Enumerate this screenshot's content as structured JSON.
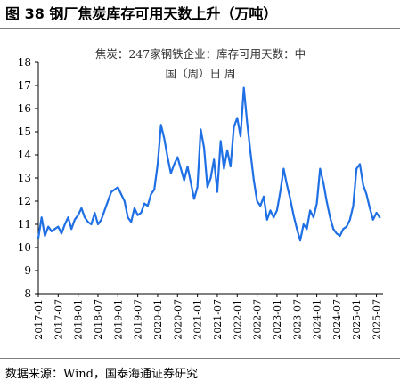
{
  "figure": {
    "title": "图 38  钢厂焦炭库存可用天数上升（万吨）",
    "source": "数据来源：Wind，国泰海通证券研究"
  },
  "chart_data": {
    "type": "line",
    "title_lines": [
      "焦炭：247家钢铁企业：库存可用天数：中",
      "国（周）日  周"
    ],
    "xlabel": "",
    "ylabel": "",
    "ylim": [
      8,
      18
    ],
    "yticks": [
      8,
      9,
      10,
      11,
      12,
      13,
      14,
      15,
      16,
      17,
      18
    ],
    "xlim": [
      "2017-01",
      "2025-09"
    ],
    "xticks": [
      "2017-01",
      "2017-07",
      "2018-01",
      "2018-07",
      "2019-01",
      "2019-07",
      "2020-01",
      "2020-07",
      "2021-01",
      "2021-07",
      "2022-01",
      "2022-07",
      "2023-01",
      "2023-07",
      "2024-01",
      "2024-07",
      "2025-01",
      "2025-07"
    ],
    "grid": false,
    "legend": "none",
    "line_color": "#1f6fe5",
    "series": [
      {
        "x": [
          "2017-01",
          "2017-02",
          "2017-03",
          "2017-04",
          "2017-05",
          "2017-06",
          "2017-07",
          "2017-08",
          "2017-09",
          "2017-10",
          "2017-11",
          "2017-12",
          "2018-01",
          "2018-02",
          "2018-03",
          "2018-04",
          "2018-05",
          "2018-06",
          "2018-07",
          "2018-08",
          "2018-09",
          "2018-10",
          "2018-11",
          "2018-12",
          "2019-01",
          "2019-02",
          "2019-03",
          "2019-04",
          "2019-05",
          "2019-06",
          "2019-07",
          "2019-08",
          "2019-09",
          "2019-10",
          "2019-11",
          "2019-12",
          "2020-01",
          "2020-02",
          "2020-03",
          "2020-04",
          "2020-05",
          "2020-06",
          "2020-07",
          "2020-08",
          "2020-09",
          "2020-10",
          "2020-11",
          "2020-12",
          "2021-01",
          "2021-02",
          "2021-03",
          "2021-04",
          "2021-05",
          "2021-06",
          "2021-07",
          "2021-08",
          "2021-09",
          "2021-10",
          "2021-11",
          "2021-12",
          "2022-01",
          "2022-02",
          "2022-03",
          "2022-04",
          "2022-05",
          "2022-06",
          "2022-07",
          "2022-08",
          "2022-09",
          "2022-10",
          "2022-11",
          "2022-12",
          "2023-01",
          "2023-02",
          "2023-03",
          "2023-04",
          "2023-05",
          "2023-06",
          "2023-07",
          "2023-08",
          "2023-09",
          "2023-10",
          "2023-11",
          "2023-12",
          "2024-01",
          "2024-02",
          "2024-03",
          "2024-04",
          "2024-05",
          "2024-06",
          "2024-07",
          "2024-08",
          "2024-09",
          "2024-10",
          "2024-11",
          "2024-12",
          "2025-01",
          "2025-02",
          "2025-03",
          "2025-04",
          "2025-05",
          "2025-06",
          "2025-07",
          "2025-08"
        ],
        "values": [
          10.4,
          11.3,
          10.5,
          10.9,
          10.7,
          10.8,
          10.9,
          10.6,
          11.0,
          11.3,
          10.8,
          11.2,
          11.4,
          11.7,
          11.3,
          11.1,
          11.0,
          11.5,
          11.0,
          11.2,
          11.6,
          12.0,
          12.4,
          12.5,
          12.6,
          12.3,
          12.0,
          11.3,
          11.1,
          11.7,
          11.4,
          11.5,
          11.9,
          11.8,
          12.3,
          12.5,
          13.6,
          15.3,
          14.7,
          13.9,
          13.2,
          13.6,
          13.9,
          13.4,
          12.9,
          13.5,
          12.8,
          12.1,
          12.6,
          15.1,
          14.3,
          12.6,
          13.0,
          13.8,
          12.4,
          14.6,
          13.4,
          14.2,
          13.5,
          15.2,
          15.6,
          14.8,
          16.9,
          15.4,
          14.1,
          12.9,
          12.0,
          11.8,
          12.2,
          11.2,
          11.6,
          11.3,
          11.6,
          12.4,
          13.4,
          12.7,
          12.1,
          11.4,
          10.8,
          10.3,
          11.0,
          10.8,
          11.6,
          11.3,
          11.9,
          13.4,
          12.8,
          12.0,
          11.3,
          10.8,
          10.6,
          10.5,
          10.8,
          10.9,
          11.2,
          11.8,
          13.4,
          13.6,
          12.7,
          12.3,
          11.7,
          11.2,
          11.5,
          11.3
        ]
      }
    ]
  }
}
